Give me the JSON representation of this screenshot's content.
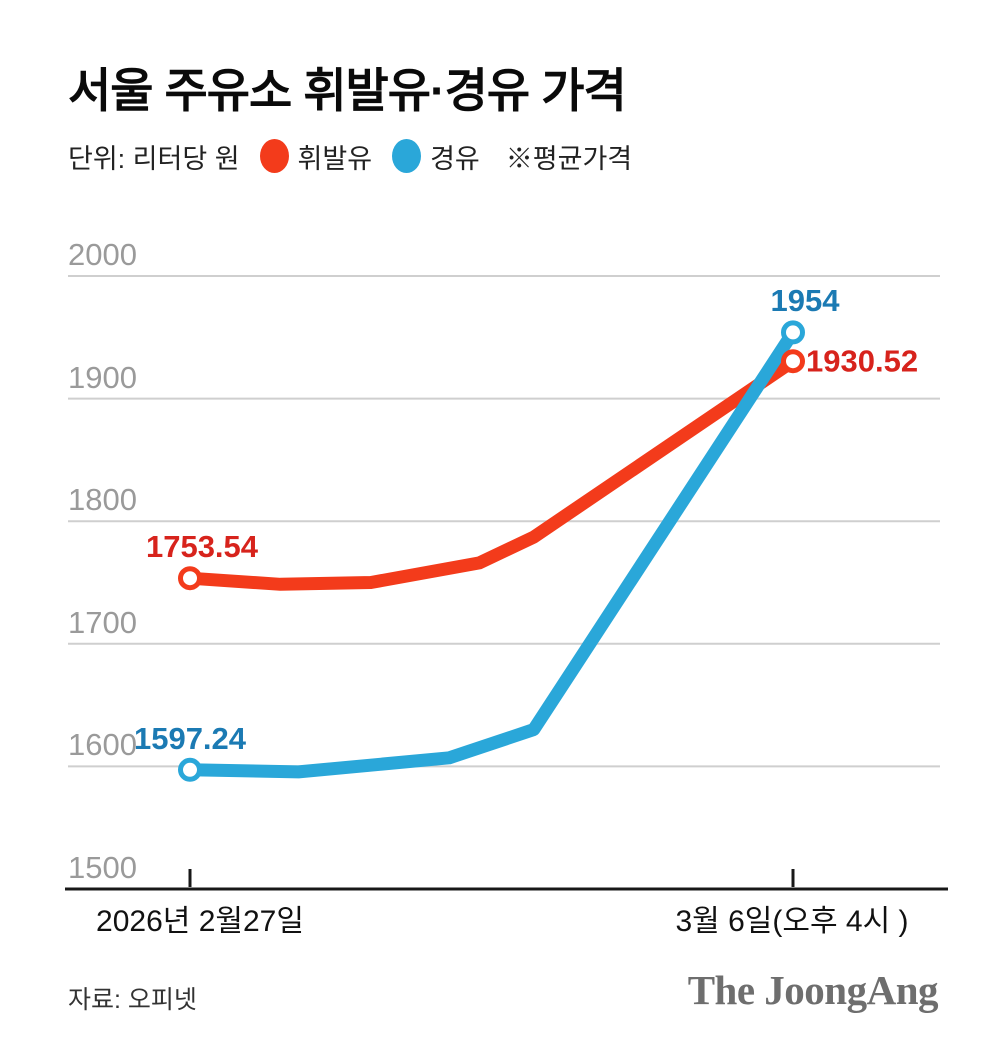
{
  "header": {
    "title": "서울 주유소 휘발유·경유 가격",
    "unit_label": "단위: 리터당 원",
    "note": "※평균가격"
  },
  "legend": {
    "items": [
      {
        "label": "휘발유",
        "color": "#f33b1b"
      },
      {
        "label": "경유",
        "color": "#2aa7d9"
      }
    ]
  },
  "chart_data": {
    "type": "line",
    "title": "서울 주유소 휘발유·경유 가격",
    "unit": "리터당 원",
    "note": "※평균가격",
    "x_axis": {
      "start_label": "2026년 2월27일",
      "end_label": "3월 6일(오후 4시 )"
    },
    "y_axis": {
      "ticks": [
        2000,
        1900,
        1800,
        1700,
        1600,
        1500
      ],
      "range": [
        1500,
        2000
      ],
      "grid": true
    },
    "series": [
      {
        "name": "휘발유",
        "color": "#f33b1b",
        "label_color": "#d7231c",
        "start_label": "1753.54",
        "end_label": "1930.52",
        "start_value": 1753.54,
        "end_value": 1930.52,
        "points": [
          {
            "x_frac": 0,
            "value": 1753.54
          },
          {
            "x_frac": 0.15,
            "value": 1748.5
          },
          {
            "x_frac": 0.3,
            "value": 1750
          },
          {
            "x_frac": 0.48,
            "value": 1766
          },
          {
            "x_frac": 0.57,
            "value": 1787
          },
          {
            "x_frac": 1,
            "value": 1930.52
          }
        ]
      },
      {
        "name": "경유",
        "color": "#2aa7d9",
        "label_color": "#1b7ab3",
        "start_label": "1597.24",
        "end_label": "1954",
        "start_value": 1597.24,
        "end_value": 1954,
        "points": [
          {
            "x_frac": 0,
            "value": 1597.24
          },
          {
            "x_frac": 0.18,
            "value": 1595.5
          },
          {
            "x_frac": 0.43,
            "value": 1607
          },
          {
            "x_frac": 0.57,
            "value": 1630
          },
          {
            "x_frac": 1,
            "value": 1954
          }
        ]
      }
    ]
  },
  "footer": {
    "source": "자료: 오피넷",
    "logo": "The JoongAng"
  }
}
